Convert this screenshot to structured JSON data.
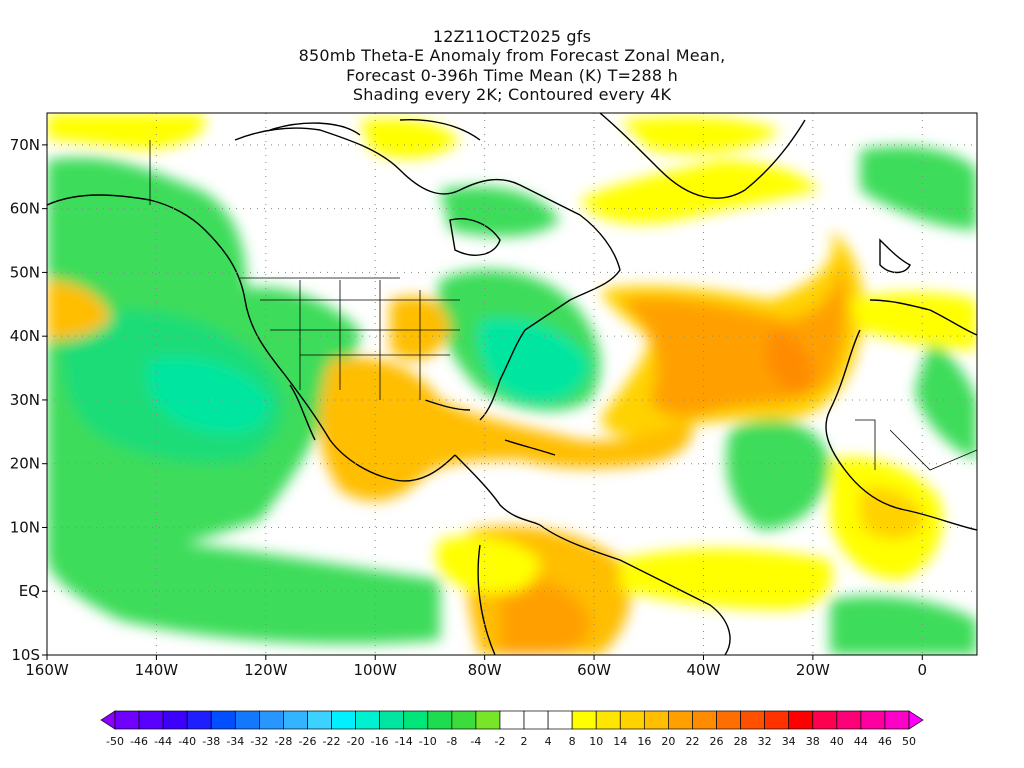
{
  "header": {
    "line1": "12Z11OCT2025 gfs",
    "line2": "850mb Theta-E Anomaly from Forecast Zonal Mean,",
    "line3": "Forecast 0-396h Time Mean (K) T=288 h",
    "line4": "Shading every 2K; Contoured every 4K"
  },
  "map": {
    "lon_range": [
      -160,
      10
    ],
    "lat_range": [
      -10,
      75
    ],
    "lon_labels": [
      "160W",
      "140W",
      "120W",
      "100W",
      "80W",
      "60W",
      "40W",
      "20W",
      "0"
    ],
    "lat_labels": [
      "70N",
      "60N",
      "50N",
      "40N",
      "30N",
      "20N",
      "10N",
      "EQ",
      "10S"
    ]
  },
  "colorbar": {
    "labels": [
      "-50",
      "-46",
      "-44",
      "-40",
      "-38",
      "-34",
      "-32",
      "-28",
      "-26",
      "-22",
      "-20",
      "-16",
      "-14",
      "-10",
      "-8",
      "-4",
      "-2",
      "2",
      "4",
      "8",
      "10",
      "14",
      "16",
      "20",
      "22",
      "26",
      "28",
      "32",
      "34",
      "38",
      "40",
      "44",
      "46",
      "50"
    ],
    "colors": [
      "#8c00ff",
      "#7000ff",
      "#5a00ff",
      "#3c00ff",
      "#1e1eff",
      "#0050ff",
      "#1478ff",
      "#2896ff",
      "#32b4ff",
      "#3cd2ff",
      "#00f0ff",
      "#00f0d2",
      "#00e6a0",
      "#00e678",
      "#1edc50",
      "#3cdc3c",
      "#78e628",
      "#ffffff",
      "#ffffff",
      "#ffffff",
      "#ffff00",
      "#ffe600",
      "#ffd200",
      "#ffbe00",
      "#ffa000",
      "#ff8c00",
      "#ff6e00",
      "#ff5000",
      "#ff3200",
      "#ff0000",
      "#ff0050",
      "#ff0078",
      "#ff00a0",
      "#ff00c8",
      "#ff00ff"
    ]
  }
}
